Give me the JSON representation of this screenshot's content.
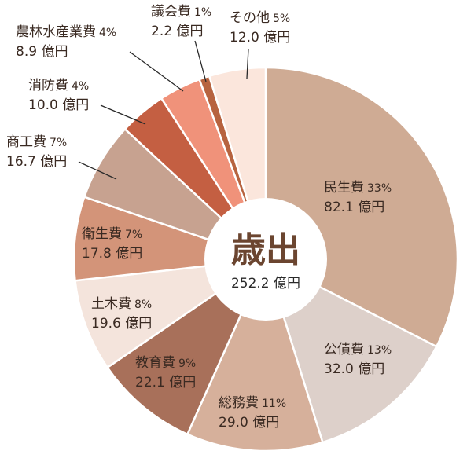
{
  "chart_data": {
    "type": "pie",
    "title": "歳出",
    "total": "252.2 億円",
    "slices": [
      {
        "name": "民生費",
        "pct": "33%",
        "value": 82.1,
        "value_label": "82.1 億円",
        "color": "#cfab94"
      },
      {
        "name": "公債費",
        "pct": "13%",
        "value": 32.0,
        "value_label": "32.0 億円",
        "color": "#ddd0ca"
      },
      {
        "name": "総務費",
        "pct": "11%",
        "value": 29.0,
        "value_label": "29.0 億円",
        "color": "#d6b09b"
      },
      {
        "name": "教育費",
        "pct": "9%",
        "value": 22.1,
        "value_label": "22.1 億円",
        "color": "#a8705a"
      },
      {
        "name": "土木費",
        "pct": "8%",
        "value": 19.6,
        "value_label": "19.6 億円",
        "color": "#f4e4dc"
      },
      {
        "name": "衛生費",
        "pct": "7%",
        "value": 17.8,
        "value_label": "17.8 億円",
        "color": "#d39479"
      },
      {
        "name": "商工費",
        "pct": "7%",
        "value": 16.7,
        "value_label": "16.7 億円",
        "color": "#c7a290"
      },
      {
        "name": "消防費",
        "pct": "4%",
        "value": 10.0,
        "value_label": "10.0 億円",
        "color": "#c45f42"
      },
      {
        "name": "農林水産業費",
        "pct": "4%",
        "value": 8.9,
        "value_label": "8.9 億円",
        "color": "#f0927a"
      },
      {
        "name": "議会費",
        "pct": "1%",
        "value": 2.2,
        "value_label": "2.2 億円",
        "color": "#b7633f"
      },
      {
        "name": "その他",
        "pct": "5%",
        "value": 12.0,
        "value_label": "12.0 億円",
        "color": "#fbe6dc"
      }
    ]
  }
}
